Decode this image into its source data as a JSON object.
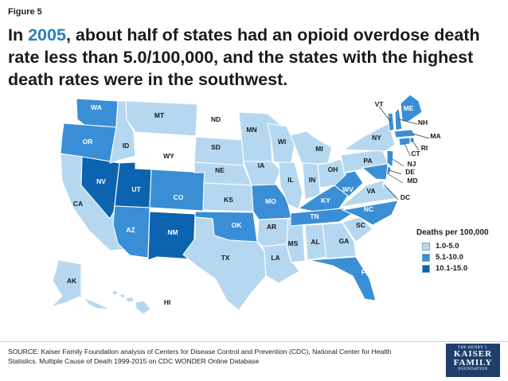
{
  "figure_label": "Figure 5",
  "headline": {
    "before": "In ",
    "year": "2005",
    "after": ", about half of states had an opioid overdose death rate less than 5.0/100,000, and the states with the highest death rates were in the southwest."
  },
  "colors": {
    "low": "#b5d8f0",
    "mid": "#3a8ed6",
    "high": "#0c63b0",
    "none": "#ffffff",
    "accent": "#2a7fc1"
  },
  "legend": {
    "title": "Deaths per 100,000",
    "items": [
      {
        "label": "1.0-5.0",
        "color": "#b5d8f0"
      },
      {
        "label": "5.1-10.0",
        "color": "#3a8ed6"
      },
      {
        "label": "10.1-15.0",
        "color": "#0c63b0"
      }
    ]
  },
  "states": [
    {
      "abbr": "WA",
      "bin": "mid"
    },
    {
      "abbr": "OR",
      "bin": "mid"
    },
    {
      "abbr": "CA",
      "bin": "low"
    },
    {
      "abbr": "NV",
      "bin": "high"
    },
    {
      "abbr": "ID",
      "bin": "low"
    },
    {
      "abbr": "MT",
      "bin": "low"
    },
    {
      "abbr": "WY",
      "bin": "none"
    },
    {
      "abbr": "UT",
      "bin": "high"
    },
    {
      "abbr": "AZ",
      "bin": "mid"
    },
    {
      "abbr": "CO",
      "bin": "mid"
    },
    {
      "abbr": "NM",
      "bin": "high"
    },
    {
      "abbr": "ND",
      "bin": "none"
    },
    {
      "abbr": "SD",
      "bin": "low"
    },
    {
      "abbr": "NE",
      "bin": "low"
    },
    {
      "abbr": "KS",
      "bin": "low"
    },
    {
      "abbr": "OK",
      "bin": "mid"
    },
    {
      "abbr": "TX",
      "bin": "low"
    },
    {
      "abbr": "MN",
      "bin": "low"
    },
    {
      "abbr": "IA",
      "bin": "low"
    },
    {
      "abbr": "MO",
      "bin": "mid"
    },
    {
      "abbr": "AR",
      "bin": "low"
    },
    {
      "abbr": "LA",
      "bin": "low"
    },
    {
      "abbr": "WI",
      "bin": "low"
    },
    {
      "abbr": "IL",
      "bin": "low"
    },
    {
      "abbr": "MS",
      "bin": "low"
    },
    {
      "abbr": "MI",
      "bin": "low"
    },
    {
      "abbr": "IN",
      "bin": "low"
    },
    {
      "abbr": "KY",
      "bin": "mid"
    },
    {
      "abbr": "TN",
      "bin": "mid"
    },
    {
      "abbr": "AL",
      "bin": "low"
    },
    {
      "abbr": "GA",
      "bin": "low"
    },
    {
      "abbr": "FL",
      "bin": "mid"
    },
    {
      "abbr": "SC",
      "bin": "low"
    },
    {
      "abbr": "NC",
      "bin": "mid"
    },
    {
      "abbr": "VA",
      "bin": "low"
    },
    {
      "abbr": "WV",
      "bin": "mid"
    },
    {
      "abbr": "OH",
      "bin": "low"
    },
    {
      "abbr": "PA",
      "bin": "low"
    },
    {
      "abbr": "NY",
      "bin": "low"
    },
    {
      "abbr": "VT",
      "bin": "mid"
    },
    {
      "abbr": "NH",
      "bin": "mid"
    },
    {
      "abbr": "ME",
      "bin": "mid"
    },
    {
      "abbr": "MA",
      "bin": "mid"
    },
    {
      "abbr": "RI",
      "bin": "mid"
    },
    {
      "abbr": "CT",
      "bin": "mid"
    },
    {
      "abbr": "NJ",
      "bin": "mid"
    },
    {
      "abbr": "DE",
      "bin": "mid"
    },
    {
      "abbr": "MD",
      "bin": "mid"
    },
    {
      "abbr": "DC",
      "bin": "low"
    },
    {
      "abbr": "AK",
      "bin": "low"
    },
    {
      "abbr": "HI",
      "bin": "low"
    }
  ],
  "source": "SOURCE: Kaiser Family Foundation analysis of Centers for Disease Control and Prevention (CDC), National Center for Health Statistics. Multiple Cause of Death 1999-2015 on CDC WONDER Online Database",
  "logo": {
    "line1": "THE HENRY J.",
    "line2a": "KAISER",
    "line2b": "FAMILY",
    "line3": "FOUNDATION"
  }
}
